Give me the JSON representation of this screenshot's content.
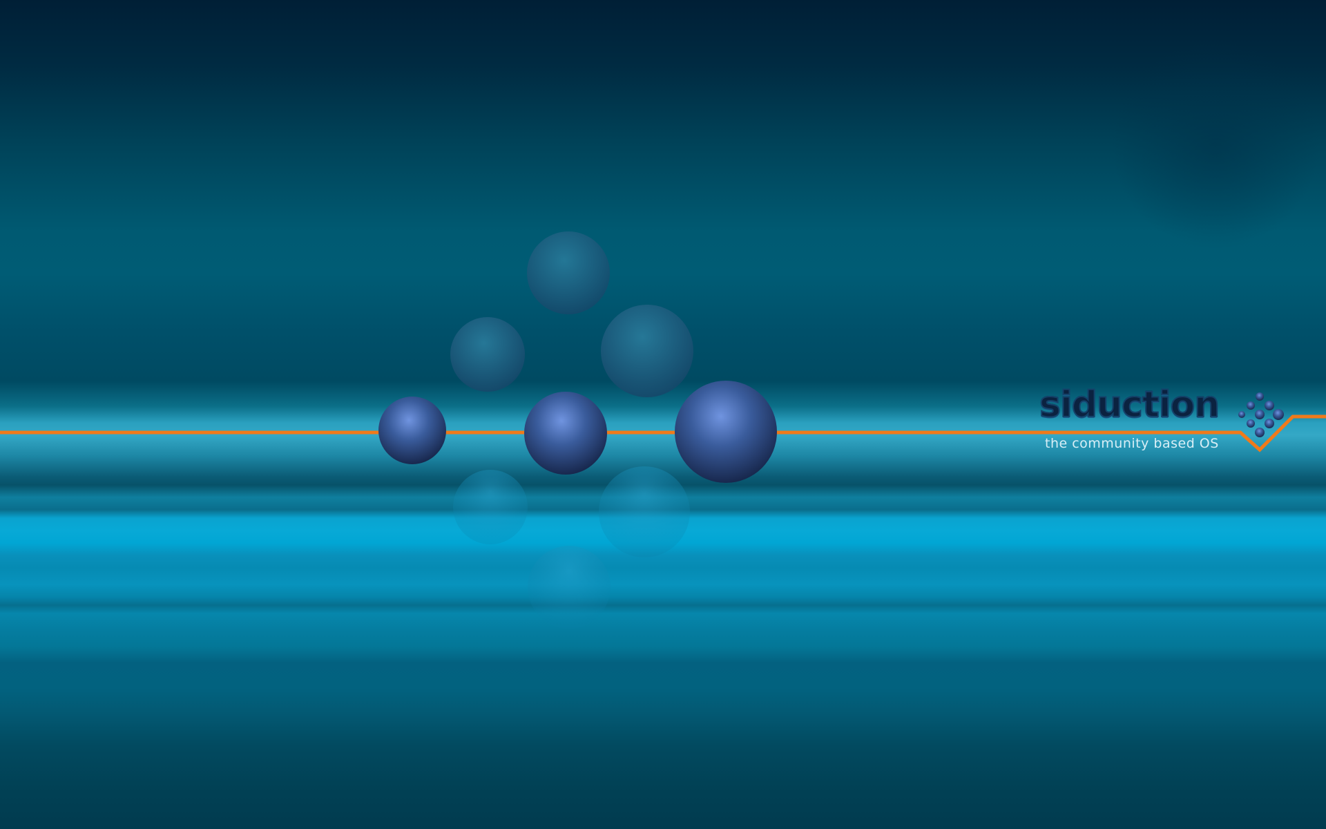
{
  "wallpaper": {
    "brand_name": "siduction",
    "tagline": "the community based OS",
    "colors": {
      "orange_line": "#f07a1a",
      "sphere_dark": "#1b2b55",
      "sphere_light": "#6a8fd8",
      "text_light": "#d8eef6"
    },
    "icons": [
      "sphere-cluster-icon",
      "siduction-logo-icon"
    ]
  }
}
